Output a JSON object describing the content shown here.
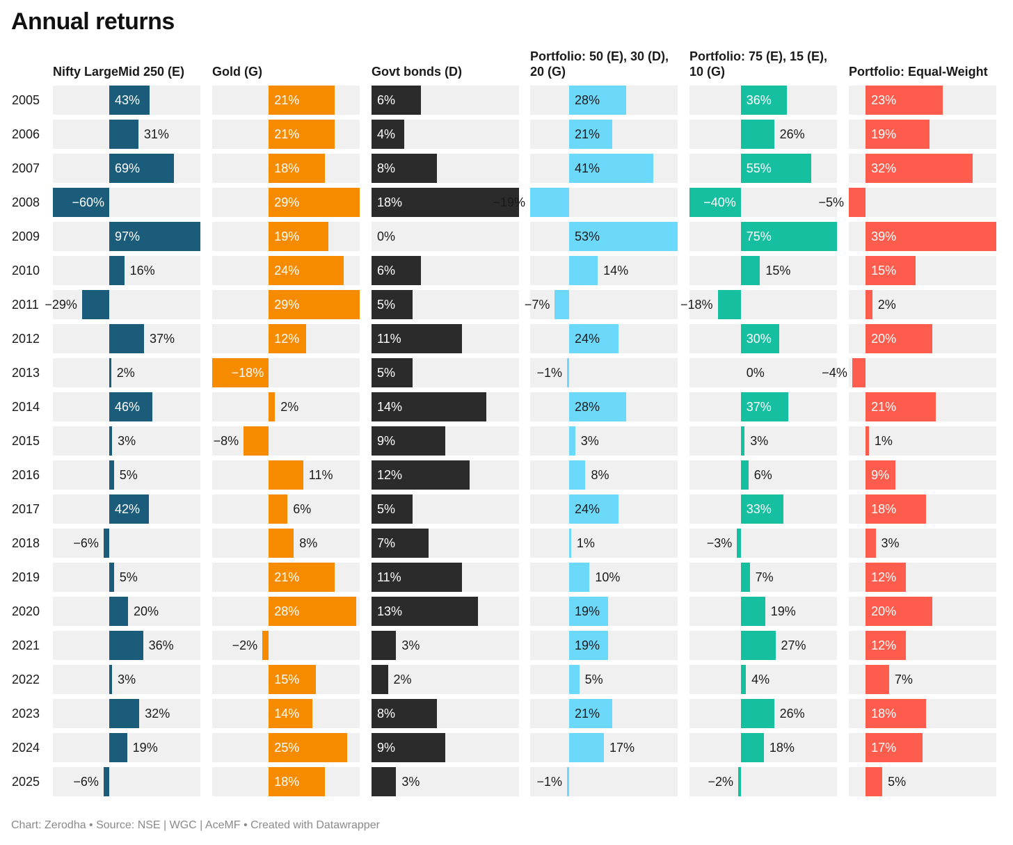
{
  "chart_data": {
    "type": "bar",
    "title": "Annual returns",
    "footer": "Chart: Zerodha • Source: NSE | WGC | AceMF • Created with Datawrapper",
    "categories": [
      "2005",
      "2006",
      "2007",
      "2008",
      "2009",
      "2010",
      "2011",
      "2012",
      "2013",
      "2014",
      "2015",
      "2016",
      "2017",
      "2018",
      "2019",
      "2020",
      "2021",
      "2022",
      "2023",
      "2024",
      "2025"
    ],
    "value_suffix": "%",
    "series": [
      {
        "name": "Nifty LargeMid 250 (E)",
        "color": "#1a5c7a",
        "range": [
          -60,
          97
        ],
        "values": [
          43,
          31,
          69,
          -60,
          97,
          16,
          -29,
          37,
          2,
          46,
          3,
          5,
          42,
          -6,
          5,
          20,
          36,
          3,
          32,
          19,
          -6
        ],
        "labels_inside": [
          true,
          false,
          true,
          true,
          true,
          false,
          false,
          false,
          false,
          true,
          false,
          false,
          true,
          false,
          false,
          false,
          false,
          false,
          false,
          false,
          false
        ]
      },
      {
        "name": "Gold (G)",
        "color": "#f78b00",
        "range": [
          -18,
          29
        ],
        "values": [
          21,
          21,
          18,
          29,
          19,
          24,
          29,
          12,
          -18,
          2,
          -8,
          11,
          6,
          8,
          21,
          28,
          -2,
          15,
          14,
          25,
          18
        ],
        "labels_inside": [
          true,
          true,
          true,
          true,
          true,
          true,
          true,
          true,
          true,
          false,
          false,
          false,
          false,
          false,
          true,
          true,
          false,
          true,
          true,
          true,
          true
        ]
      },
      {
        "name": "Govt bonds (D)",
        "color": "#2b2b2b",
        "range": [
          0,
          18
        ],
        "values": [
          6,
          4,
          8,
          18,
          0,
          6,
          5,
          11,
          5,
          14,
          9,
          12,
          5,
          7,
          11,
          13,
          3,
          2,
          8,
          9,
          3
        ],
        "labels_inside": [
          true,
          true,
          true,
          true,
          false,
          true,
          true,
          true,
          true,
          true,
          true,
          true,
          true,
          true,
          true,
          true,
          false,
          false,
          true,
          true,
          false
        ]
      },
      {
        "name": "Portfolio: 50 (E), 30 (D), 20 (G)",
        "color": "#6cd8fa",
        "range": [
          -19,
          53
        ],
        "values": [
          28,
          21,
          41,
          -19,
          53,
          14,
          -7,
          24,
          -1,
          28,
          3,
          8,
          24,
          1,
          10,
          19,
          19,
          5,
          21,
          17,
          -1
        ],
        "labels_inside": [
          true,
          true,
          true,
          false,
          true,
          false,
          false,
          true,
          false,
          true,
          false,
          false,
          true,
          false,
          false,
          true,
          true,
          false,
          true,
          false,
          false
        ],
        "label_dark": true
      },
      {
        "name": "Portfolio: 75 (E), 15 (E), 10 (G)",
        "color": "#15bfa0",
        "range": [
          -40,
          75
        ],
        "values": [
          36,
          26,
          55,
          -40,
          75,
          15,
          -18,
          30,
          0,
          37,
          3,
          6,
          33,
          -3,
          7,
          19,
          27,
          4,
          26,
          18,
          -2
        ],
        "labels_inside": [
          true,
          false,
          true,
          true,
          true,
          false,
          false,
          true,
          false,
          true,
          false,
          false,
          true,
          false,
          false,
          false,
          false,
          false,
          false,
          false,
          false
        ]
      },
      {
        "name": "Portfolio: Equal-Weight",
        "color": "#fe5c4c",
        "range": [
          -5,
          39
        ],
        "values": [
          23,
          19,
          32,
          -5,
          39,
          15,
          2,
          20,
          -4,
          21,
          1,
          9,
          18,
          3,
          12,
          20,
          12,
          7,
          18,
          17,
          5
        ],
        "labels_inside": [
          true,
          true,
          true,
          false,
          true,
          true,
          false,
          true,
          false,
          true,
          false,
          true,
          true,
          false,
          true,
          true,
          true,
          false,
          true,
          true,
          false
        ]
      }
    ]
  }
}
